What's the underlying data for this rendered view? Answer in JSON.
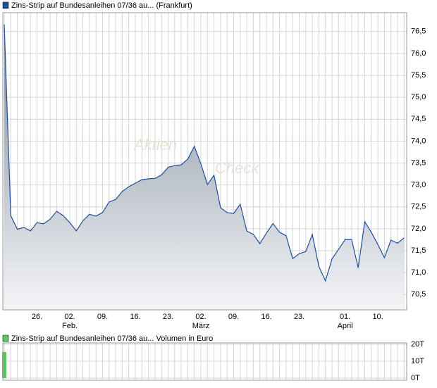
{
  "chart_data": [
    {
      "type": "area",
      "title": "Zins-Strip auf Bundesanleihen 07/36 au... (Frankfurt)",
      "watermark": [
        "Aktien",
        "Check"
      ],
      "color": "#1f4e99",
      "categories": [
        null,
        null,
        null,
        null,
        null,
        "26.",
        null,
        null,
        null,
        null,
        "02.",
        null,
        null,
        null,
        null,
        "09.",
        null,
        null,
        null,
        null,
        "16.",
        null,
        null,
        null,
        null,
        "23.",
        null,
        null,
        null,
        null,
        "02.",
        null,
        null,
        null,
        null,
        "09.",
        null,
        null,
        null,
        null,
        "16.",
        null,
        null,
        null,
        null,
        "23.",
        null,
        null,
        null,
        null,
        null,
        null,
        "01.",
        null,
        null,
        null,
        null,
        "10.",
        null,
        null,
        null,
        null
      ],
      "months": [
        null,
        null,
        null,
        null,
        null,
        null,
        null,
        null,
        null,
        null,
        "Feb.",
        null,
        null,
        null,
        null,
        null,
        null,
        null,
        null,
        null,
        null,
        null,
        null,
        null,
        null,
        null,
        null,
        null,
        null,
        null,
        "März",
        null,
        null,
        null,
        null,
        null,
        null,
        null,
        null,
        null,
        null,
        null,
        null,
        null,
        null,
        null,
        null,
        null,
        null,
        null,
        null,
        null,
        "April",
        null,
        null,
        null,
        null,
        null,
        null,
        null,
        null,
        null
      ],
      "values": [
        76.66,
        72.3,
        71.99,
        72.03,
        71.95,
        72.14,
        72.11,
        72.22,
        72.4,
        72.3,
        72.14,
        71.95,
        72.18,
        72.33,
        72.29,
        72.37,
        72.61,
        72.67,
        72.85,
        72.96,
        73.04,
        73.12,
        73.14,
        73.15,
        73.23,
        73.4,
        73.44,
        73.46,
        73.59,
        73.88,
        73.48,
        73.01,
        73.22,
        72.48,
        72.37,
        72.35,
        72.56,
        71.95,
        71.87,
        71.66,
        71.9,
        72.12,
        71.92,
        71.84,
        71.32,
        71.43,
        71.48,
        71.87,
        71.14,
        70.81,
        71.31,
        71.53,
        71.75,
        71.75,
        71.11,
        72.16,
        71.92,
        71.64,
        71.34,
        71.74,
        71.67,
        71.79
      ],
      "ylim": [
        70.15,
        76.93
      ],
      "yticks": [
        {
          "value": 70.5,
          "label": "70,5"
        },
        {
          "value": 71,
          "label": "71,0"
        },
        {
          "value": 71.5,
          "label": "71,5"
        },
        {
          "value": 72,
          "label": "72,0"
        },
        {
          "value": 72.5,
          "label": "72,5"
        },
        {
          "value": 73,
          "label": "73,0"
        },
        {
          "value": 73.5,
          "label": "73,5"
        },
        {
          "value": 74,
          "label": "74,0"
        },
        {
          "value": 74.5,
          "label": "74,5"
        },
        {
          "value": 75,
          "label": "75,0"
        },
        {
          "value": 75.5,
          "label": "75,5"
        },
        {
          "value": 76,
          "label": "76,0"
        },
        {
          "value": 76.5,
          "label": "76,5"
        }
      ],
      "grid": true
    },
    {
      "type": "bar",
      "title": "Zins-Strip auf Bundesanleihen 07/36 au... Volumen in Euro",
      "color": "#5cc85c",
      "values": [
        15500,
        0,
        0,
        0,
        0,
        0,
        0,
        0,
        0,
        0,
        0,
        0,
        0,
        0,
        0,
        0,
        0,
        0,
        0,
        0,
        0,
        0,
        0,
        0,
        0,
        0,
        0,
        0,
        0,
        0,
        0,
        0,
        0,
        0,
        0,
        0,
        0,
        0,
        0,
        0,
        0,
        0,
        0,
        0,
        0,
        0,
        0,
        0,
        0,
        0,
        0,
        0,
        0,
        0,
        0,
        0,
        0,
        0,
        0,
        0,
        0,
        0
      ],
      "ylim": [
        0,
        20000
      ],
      "yticks": [
        {
          "value": 0,
          "label": "0T"
        },
        {
          "value": 10000,
          "label": "10T"
        },
        {
          "value": 20000,
          "label": "20T"
        }
      ],
      "grid": true
    }
  ]
}
